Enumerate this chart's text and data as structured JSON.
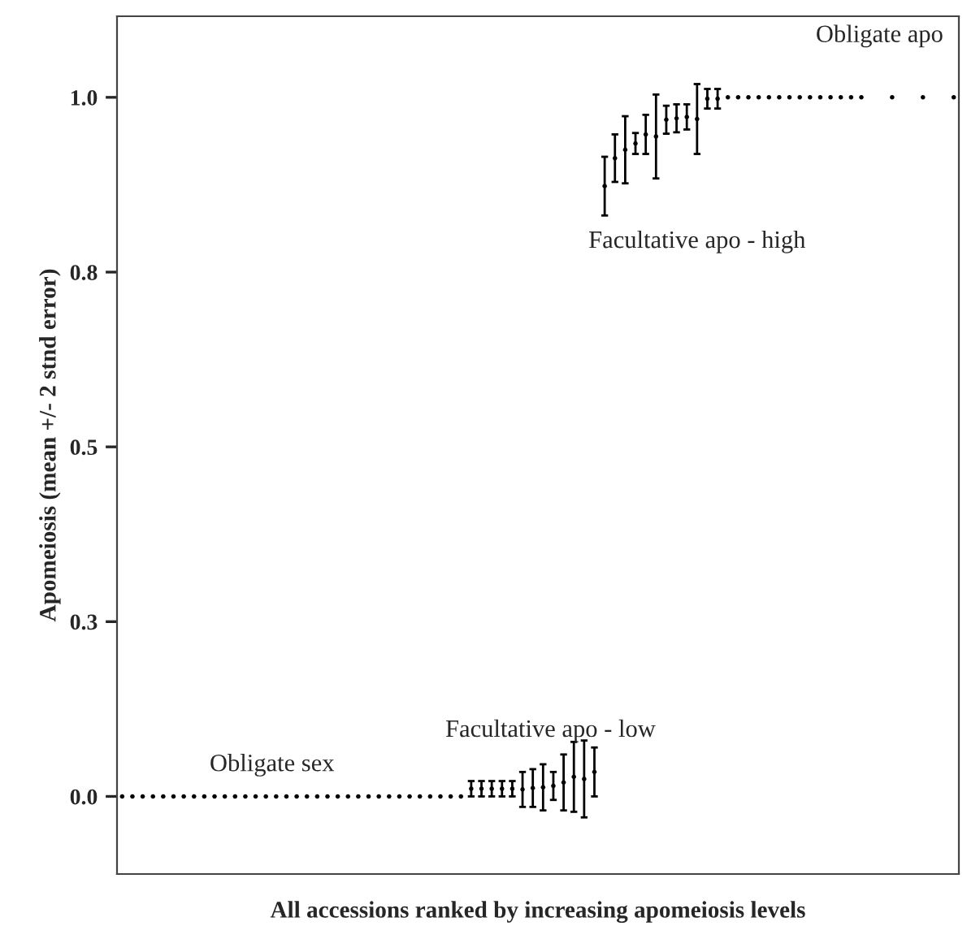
{
  "chart_data": {
    "type": "scatter",
    "xlabel": "All accessions ranked by increasing apomeiosis levels",
    "ylabel": "Apomeiosis (mean +/- 2 stnd error)",
    "categories": [
      null,
      null,
      null,
      null,
      null,
      null,
      null,
      null,
      null,
      null,
      null,
      null,
      null,
      null,
      null,
      null,
      null,
      null,
      null,
      null,
      null,
      null,
      null,
      null,
      null,
      null,
      null,
      null,
      null,
      null,
      null,
      null,
      null,
      null,
      null,
      null,
      null,
      null,
      null,
      null,
      null,
      null,
      null,
      null,
      null,
      null,
      null,
      null,
      null,
      null,
      null,
      null,
      null,
      null,
      null,
      null,
      null,
      null,
      null,
      null,
      null,
      null,
      null,
      null,
      null,
      null,
      null,
      null,
      null,
      null,
      null,
      null,
      null,
      null,
      null,
      null,
      null,
      null,
      null,
      null,
      null,
      null
    ],
    "values": [
      0,
      0,
      0,
      0,
      0,
      0,
      0,
      0,
      0,
      0,
      0,
      0,
      0,
      0,
      0,
      0,
      0,
      0,
      0,
      0,
      0,
      0,
      0,
      0,
      0,
      0,
      0,
      0,
      0,
      0,
      0,
      0,
      0,
      0,
      0.011,
      0.011,
      0.011,
      0.011,
      0.011,
      0.01,
      0.012,
      0.013,
      0.015,
      0.02,
      0.028,
      0.025,
      0.035,
      0.873,
      0.913,
      0.925,
      0.934,
      0.947,
      0.944,
      0.968,
      0.97,
      0.972,
      0.969,
      0.998,
      0.998,
      1,
      1,
      1,
      1,
      1,
      1,
      1,
      1,
      1,
      1,
      1,
      1,
      1,
      1,
      null,
      null,
      1,
      null,
      null,
      1,
      null,
      null,
      1
    ],
    "errors": [
      null,
      null,
      null,
      null,
      null,
      null,
      null,
      null,
      null,
      null,
      null,
      null,
      null,
      null,
      null,
      null,
      null,
      null,
      null,
      null,
      null,
      null,
      null,
      null,
      null,
      null,
      null,
      null,
      null,
      null,
      null,
      null,
      null,
      null,
      0.011,
      0.011,
      0.011,
      0.011,
      0.011,
      0.025,
      0.027,
      0.033,
      0.02,
      0.04,
      0.05,
      0.055,
      0.035,
      0.042,
      0.034,
      0.048,
      0.015,
      0.028,
      0.06,
      0.02,
      0.02,
      0.018,
      0.05,
      0.014,
      0.014,
      null,
      null,
      null,
      null,
      null,
      null,
      null,
      null,
      null,
      null,
      null,
      null,
      null,
      null,
      null,
      null,
      null,
      null,
      null,
      null,
      null,
      null,
      null
    ],
    "annotations": [
      "Obligate sex",
      "Facultative apo - low",
      "Facultative apo - high",
      "Obligate apo"
    ],
    "ylim": [
      -0.111,
      1.116
    ],
    "yticks": [
      {
        "value": 0,
        "label": "0.0"
      },
      {
        "value": 0.25,
        "label": "0.3"
      },
      {
        "value": 0.5,
        "label": "0.5"
      },
      {
        "value": 0.75,
        "label": "0.8"
      },
      {
        "value": 1,
        "label": "1.0"
      }
    ],
    "tick_labels": "y",
    "grid": false,
    "legend": false
  }
}
